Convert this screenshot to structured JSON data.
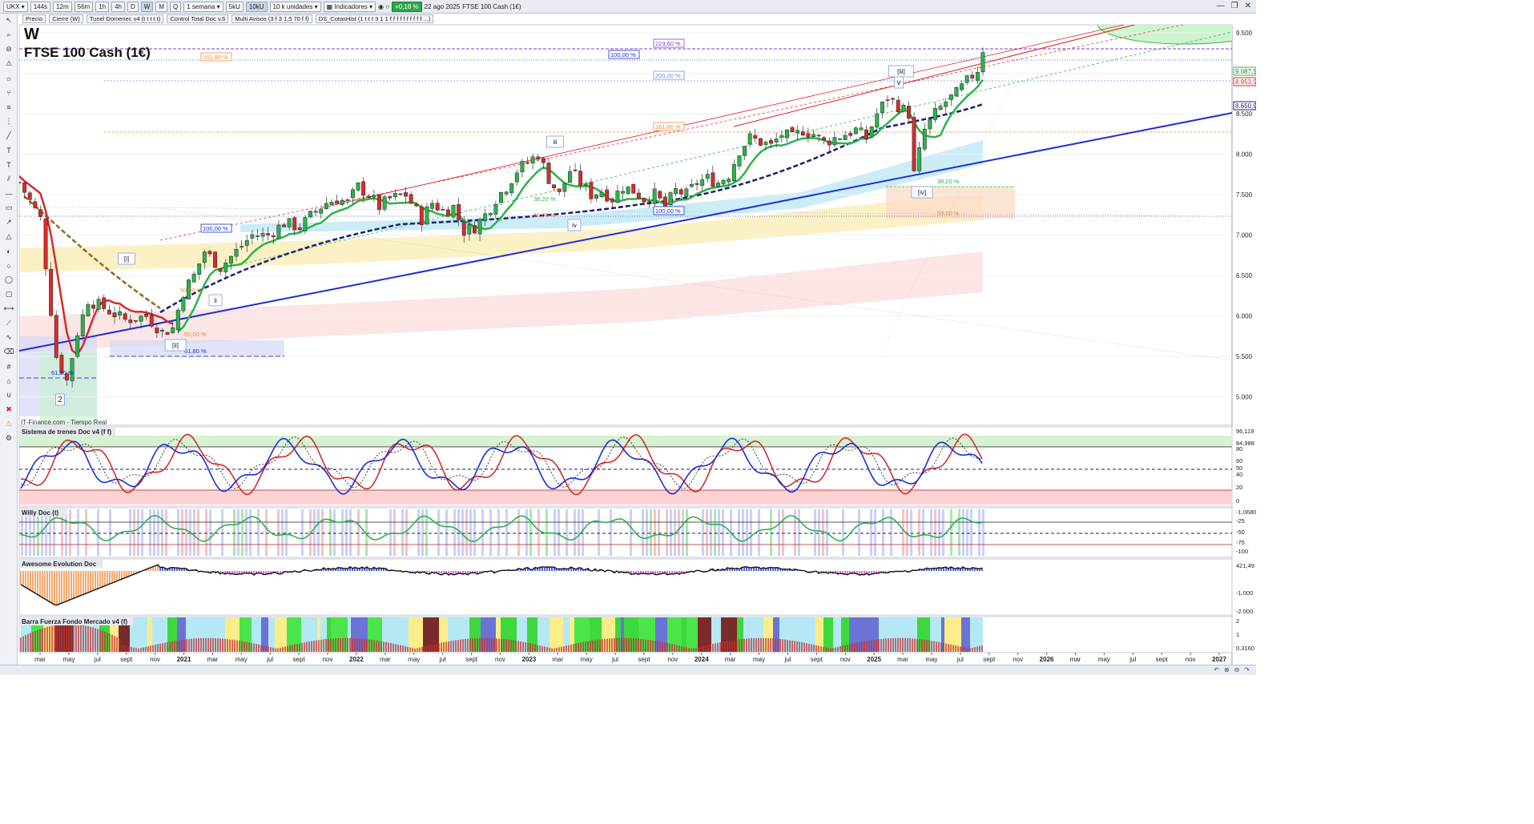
{
  "toolbar": {
    "symbol": "UKX",
    "timeframes": [
      "144s",
      "12m",
      "56m",
      "1h",
      "4h",
      "D",
      "W",
      "M",
      "Q"
    ],
    "period": "1 semana",
    "units_short": [
      "5kU",
      "10kU"
    ],
    "units": "10 k unidades",
    "indicators_label": "Indicadores",
    "change": "+0,18 %",
    "date": "22 ago 2025",
    "instrument": "FTSE 100 Cash (1€)"
  },
  "indicator_tags": [
    "Precio",
    "Cierre (W)",
    "Tunel Domenec v4 (t t t t t)",
    "Control Total Doc v.6",
    "Multi Avisos (3 f 3 1,5 70 f f)",
    "DS_CotasHist (1 t t t 3 1 1 f f f f f f f f f f ...)"
  ],
  "chart_data": {
    "type": "candlestick",
    "timeframe_label": "W",
    "title": "FTSE 100 Cash (1€)",
    "source": "IT-Finance.com - Tiempo Real",
    "x_ticks": [
      "mar",
      "may",
      "jul",
      "sept",
      "nov",
      "2021",
      "mar",
      "may",
      "jul",
      "sept",
      "nov",
      "2022",
      "mar",
      "may",
      "jul",
      "sept",
      "nov",
      "2023",
      "mar",
      "may",
      "jul",
      "sept",
      "nov",
      "2024",
      "mar",
      "may",
      "jul",
      "sept",
      "nov",
      "2025",
      "mar",
      "may",
      "jul",
      "sept",
      "nov",
      "2026",
      "mar",
      "may",
      "jul",
      "sept",
      "nov",
      "2027"
    ],
    "y_ticks": [
      "9.500",
      "9.000",
      "8.500",
      "8.000",
      "7.500",
      "7.000",
      "6.500",
      "6.000",
      "5.500",
      "5.000"
    ],
    "ylim": [
      4650,
      9600
    ],
    "price_labels": [
      "9.087,5",
      "8.953,9",
      "8.650,9"
    ],
    "close_path": [
      [
        0,
        7650
      ],
      [
        4,
        7200
      ],
      [
        7,
        5500
      ],
      [
        9,
        5200
      ],
      [
        11,
        5800
      ],
      [
        13,
        6200
      ],
      [
        16,
        6100
      ],
      [
        20,
        5950
      ],
      [
        24,
        6000
      ],
      [
        27,
        5800
      ],
      [
        29,
        5850
      ],
      [
        31,
        6300
      ],
      [
        33,
        6500
      ],
      [
        35,
        6800
      ],
      [
        38,
        6600
      ],
      [
        41,
        6800
      ],
      [
        44,
        7000
      ],
      [
        47,
        7000
      ],
      [
        50,
        7150
      ],
      [
        53,
        7100
      ],
      [
        56,
        7300
      ],
      [
        58,
        7400
      ],
      [
        60,
        7450
      ],
      [
        62,
        7400
      ],
      [
        64,
        7600
      ],
      [
        66,
        7500
      ],
      [
        68,
        7350
      ],
      [
        70,
        7450
      ],
      [
        73,
        7500
      ],
      [
        76,
        7200
      ],
      [
        78,
        7400
      ],
      [
        80,
        7300
      ],
      [
        82,
        7350
      ],
      [
        84,
        7050
      ],
      [
        86,
        7100
      ],
      [
        88,
        7250
      ],
      [
        90,
        7450
      ],
      [
        92,
        7600
      ],
      [
        94,
        7800
      ],
      [
        96,
        7900
      ],
      [
        98,
        8000
      ],
      [
        100,
        7700
      ],
      [
        102,
        7500
      ],
      [
        104,
        7800
      ],
      [
        106,
        7650
      ],
      [
        108,
        7500
      ],
      [
        110,
        7550
      ],
      [
        112,
        7450
      ],
      [
        114,
        7600
      ],
      [
        116,
        7550
      ],
      [
        118,
        7450
      ],
      [
        120,
        7500
      ],
      [
        122,
        7350
      ],
      [
        124,
        7550
      ],
      [
        126,
        7500
      ],
      [
        128,
        7650
      ],
      [
        130,
        7700
      ],
      [
        132,
        7650
      ],
      [
        134,
        7750
      ],
      [
        136,
        8050
      ],
      [
        138,
        8200
      ],
      [
        140,
        8150
      ],
      [
        142,
        8100
      ],
      [
        144,
        8250
      ],
      [
        146,
        8200
      ],
      [
        148,
        8300
      ],
      [
        150,
        8250
      ],
      [
        152,
        8150
      ],
      [
        154,
        8200
      ],
      [
        156,
        8250
      ],
      [
        158,
        8300
      ],
      [
        160,
        8200
      ],
      [
        162,
        8500
      ],
      [
        164,
        8700
      ],
      [
        166,
        8600
      ],
      [
        168,
        8500
      ],
      [
        169,
        7750
      ],
      [
        171,
        8300
      ],
      [
        173,
        8500
      ],
      [
        175,
        8650
      ],
      [
        177,
        8750
      ],
      [
        179,
        8900
      ],
      [
        181,
        9050
      ],
      [
        182,
        9300
      ]
    ],
    "annotations": [
      "[i]",
      "2",
      "[ii]",
      "ii",
      "iii",
      "iv",
      "[iii]",
      "[iv]",
      "v"
    ],
    "fib_labels": [
      "223,60 %",
      "161,80 %",
      "100,00 %",
      "200,00 %",
      "161,80 %",
      "100,00 %",
      "100,00 %",
      "38,20 %",
      "50,00 %",
      "38,20 %",
      "50,00 %",
      "50,00 %",
      "61,80 %",
      "50,00 %",
      "61,80 %"
    ]
  },
  "subpanels": [
    {
      "name": "Sistema de trenes Doc v4 (f f)",
      "right_labels": [
        "96,119",
        "84,988",
        "80",
        "60",
        "50",
        "40",
        "20",
        "0"
      ]
    },
    {
      "name": "Willy Doc (t)",
      "right_labels": [
        "-1,0680",
        "-25",
        "-50",
        "-75",
        "-100"
      ]
    },
    {
      "name": "Awesome Evolution Doc",
      "right_labels": [
        "421,49",
        "-1.000",
        "-2.000"
      ]
    },
    {
      "name": "Barra Fuerza Fondo Mercado v4 (f)",
      "right_labels": [
        "2",
        "1",
        "0,3160"
      ]
    }
  ],
  "colors": {
    "accent_blue": "#1b2fd6",
    "up_candle": "#2bb34a",
    "down_candle": "#d62b2b",
    "red_line": "#e02020",
    "fib_purple": "#7b3fd0",
    "fib_orange": "#f08a3c"
  }
}
